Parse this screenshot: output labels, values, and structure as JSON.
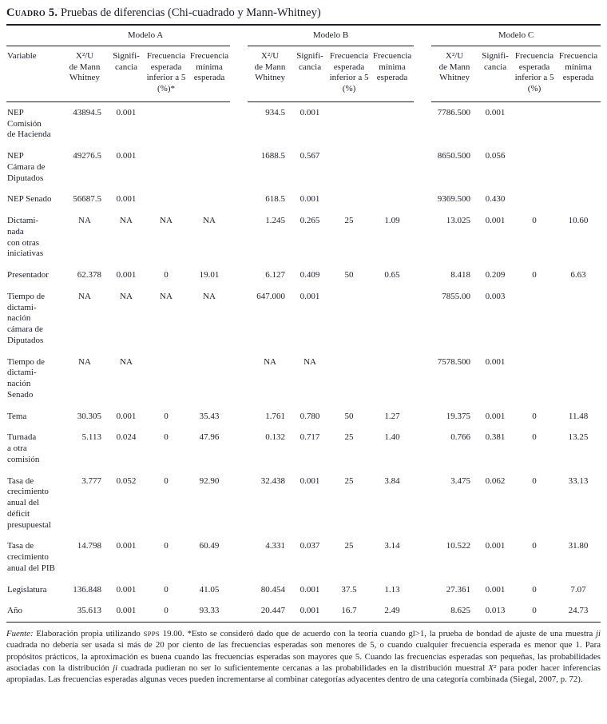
{
  "title": {
    "label": "Cuadro 5.",
    "text": " Pruebas de diferencias (Chi-cuadrado y Mann-Whitney)"
  },
  "table": {
    "groups": [
      "Modelo A",
      "Modelo B",
      "Modelo C"
    ],
    "variable_header": "Variable",
    "columns": {
      "a": [
        "X²/U\nde Mann\nWhitney",
        "Signifi-\ncancia",
        "Frecuencia\nesperada\ninferior a 5\n(%)*",
        "Frecuencia\nmínima\nesperada"
      ],
      "b": [
        "X²/U\nde Mann\nWhitney",
        "Signifi-\ncancia",
        "Frecuencia\nesperada\ninferior a 5\n(%)",
        "Frecuencia\nmínima\nesperada"
      ],
      "c": [
        "X²/U\nde Mann\nWhitney",
        "Signifi-\ncancia",
        "Frecuencia\nesperada\ninferior a 5\n(%)",
        "Frecuencia\nmínima\nesperada"
      ]
    },
    "rows": [
      {
        "variable": "NEP\nComisión\nde Hacienda",
        "a": [
          "43894.5",
          "0.001",
          "",
          ""
        ],
        "b": [
          "934.5",
          "0.001",
          "",
          ""
        ],
        "c": [
          "7786.500",
          "0.001",
          "",
          ""
        ]
      },
      {
        "variable": "NEP\nCámara de\nDiputados",
        "a": [
          "49276.5",
          "0.001",
          "",
          ""
        ],
        "b": [
          "1688.5",
          "0.567",
          "",
          ""
        ],
        "c": [
          "8650.500",
          "0.056",
          "",
          ""
        ]
      },
      {
        "variable": "NEP Senado",
        "a": [
          "56687.5",
          "0.001",
          "",
          ""
        ],
        "b": [
          "618.5",
          "0.001",
          "",
          ""
        ],
        "c": [
          "9369.500",
          "0.430",
          "",
          ""
        ]
      },
      {
        "variable": "Dictami-\nnada\ncon otras\niniciativas",
        "a": [
          "NA",
          "NA",
          "NA",
          "NA"
        ],
        "b": [
          "1.245",
          "0.265",
          "25",
          "1.09"
        ],
        "c": [
          "13.025",
          "0.001",
          "0",
          "10.60"
        ]
      },
      {
        "variable": "Presentador",
        "a": [
          "62.378",
          "0.001",
          "0",
          "19.01"
        ],
        "b": [
          "6.127",
          "0.409",
          "50",
          "0.65"
        ],
        "c": [
          "8.418",
          "0.209",
          "0",
          "6.63"
        ]
      },
      {
        "variable": "Tiempo de\ndictami-\nnación\ncámara de\nDiputados",
        "a": [
          "NA",
          "NA",
          "NA",
          "NA"
        ],
        "b": [
          "647.000",
          "0.001",
          "",
          ""
        ],
        "c": [
          "7855.00",
          "0.003",
          "",
          ""
        ]
      },
      {
        "variable": "Tiempo de\ndictami-\nnación\nSenado",
        "a": [
          "NA",
          "NA",
          "",
          ""
        ],
        "b": [
          "NA",
          "NA",
          "",
          ""
        ],
        "c": [
          "7578.500",
          "0.001",
          "",
          ""
        ]
      },
      {
        "variable": "Tema",
        "a": [
          "30.305",
          "0.001",
          "0",
          "35.43"
        ],
        "b": [
          "1.761",
          "0.780",
          "50",
          "1.27"
        ],
        "c": [
          "19.375",
          "0.001",
          "0",
          "11.48"
        ]
      },
      {
        "variable": "Turnada\na otra\ncomisión",
        "a": [
          "5.113",
          "0.024",
          "0",
          "47.96"
        ],
        "b": [
          "0.132",
          "0.717",
          "25",
          "1.40"
        ],
        "c": [
          "0.766",
          "0.381",
          "0",
          "13.25"
        ]
      },
      {
        "variable": "Tasa de\ncrecimiento\nanual del\ndéficit\npresupuestal",
        "a": [
          "3.777",
          "0.052",
          "0",
          "92.90"
        ],
        "b": [
          "32.438",
          "0.001",
          "25",
          "3.84"
        ],
        "c": [
          "3.475",
          "0.062",
          "0",
          "33.13"
        ]
      },
      {
        "variable": "Tasa de\ncrecimiento\nanual del PIB",
        "a": [
          "14.798",
          "0.001",
          "0",
          "60.49"
        ],
        "b": [
          "4.331",
          "0.037",
          "25",
          "3.14"
        ],
        "c": [
          "10.522",
          "0.001",
          "0",
          "31.80"
        ]
      },
      {
        "variable": "Legislatura",
        "a": [
          "136.848",
          "0.001",
          "0",
          "41.05"
        ],
        "b": [
          "80.454",
          "0.001",
          "37.5",
          "1.13"
        ],
        "c": [
          "27.361",
          "0.001",
          "0",
          "7.07"
        ]
      },
      {
        "variable": "Año",
        "a": [
          "35.613",
          "0.001",
          "0",
          "93.33"
        ],
        "b": [
          "20.447",
          "0.001",
          "16.7",
          "2.49"
        ],
        "c": [
          "8.625",
          "0.013",
          "0",
          "24.73"
        ]
      }
    ]
  },
  "footnote": {
    "segments": [
      {
        "text": "Fuente:",
        "italic": true
      },
      {
        "text": " Elaboración propia utilizando "
      },
      {
        "text": "SPPS",
        "smallcaps": true
      },
      {
        "text": " 19.00. *Esto se consideró dado que de acuerdo con la teoría cuando gl>1, la prueba de bondad de ajuste de una muestra "
      },
      {
        "text": "ji",
        "italic": true
      },
      {
        "text": " cuadrada no debería ser usada si más de 20 por ciento de las frecuencias esperadas son menores de 5, o cuando cualquier frecuencia esperada es menor que 1. Para propósitos prácticos, la aproximación es buena cuando las frecuencias esperadas son mayores que 5. Cuando las frecuencias esperadas son pequeñas, las probabilidades asociadas con la distribución "
      },
      {
        "text": "ji",
        "italic": true
      },
      {
        "text": " cuadrada pudieran no ser lo suficientemente cercanas a las probabilidades en la distribución muestral "
      },
      {
        "text": "X²",
        "italic": true
      },
      {
        "text": " para poder hacer inferencias apropiadas. Las frecuencias esperadas algunas veces pueden incrementarse al combinar categorías adyacentes dentro de una categoría combinada (Siegal, 2007, p. 72)."
      }
    ]
  }
}
